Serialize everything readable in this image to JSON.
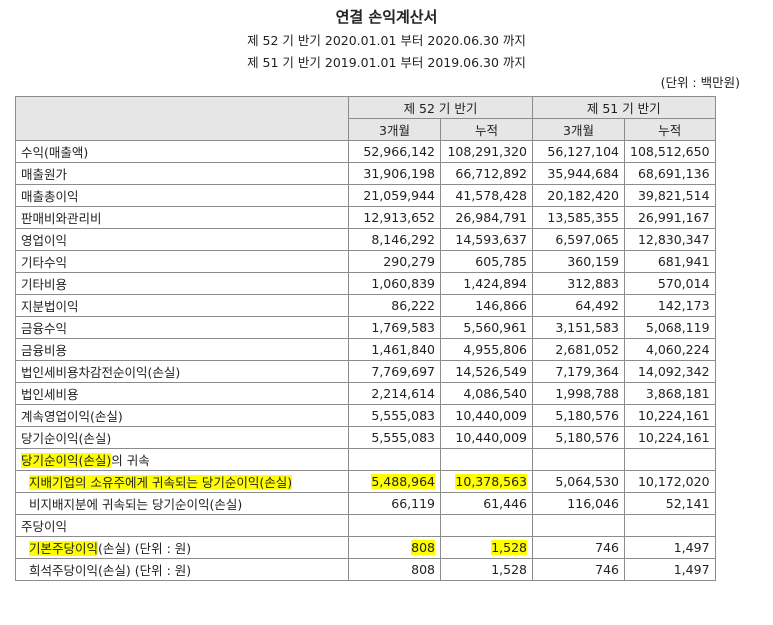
{
  "title": "연결 손익계산서",
  "period_current": "제 52 기 반기 2020.01.01 부터 2020.06.30 까지",
  "period_prior": "제 51 기 반기 2019.01.01 부터 2019.06.30 까지",
  "unit": "(단위 : 백만원)",
  "header": {
    "current_period": "제 52 기 반기",
    "prior_period": "제 51 기 반기",
    "three_months": "3개월",
    "cumulative": "누적"
  },
  "rows": [
    {
      "label": "수익(매출액)",
      "v": [
        "52,966,142",
        "108,291,320",
        "56,127,104",
        "108,512,650"
      ]
    },
    {
      "label": "매출원가",
      "v": [
        "31,906,198",
        "66,712,892",
        "35,944,684",
        "68,691,136"
      ]
    },
    {
      "label": "매출총이익",
      "v": [
        "21,059,944",
        "41,578,428",
        "20,182,420",
        "39,821,514"
      ]
    },
    {
      "label": "판매비와관리비",
      "v": [
        "12,913,652",
        "26,984,791",
        "13,585,355",
        "26,991,167"
      ]
    },
    {
      "label": "영업이익",
      "v": [
        "8,146,292",
        "14,593,637",
        "6,597,065",
        "12,830,347"
      ]
    },
    {
      "label": "기타수익",
      "v": [
        "290,279",
        "605,785",
        "360,159",
        "681,941"
      ]
    },
    {
      "label": "기타비용",
      "v": [
        "1,060,839",
        "1,424,894",
        "312,883",
        "570,014"
      ]
    },
    {
      "label": "지분법이익",
      "v": [
        "86,222",
        "146,866",
        "64,492",
        "142,173"
      ]
    },
    {
      "label": "금융수익",
      "v": [
        "1,769,583",
        "5,560,961",
        "3,151,583",
        "5,068,119"
      ]
    },
    {
      "label": "금융비용",
      "v": [
        "1,461,840",
        "4,955,806",
        "2,681,052",
        "4,060,224"
      ]
    },
    {
      "label": "법인세비용차감전순이익(손실)",
      "v": [
        "7,769,697",
        "14,526,549",
        "7,179,364",
        "14,092,342"
      ]
    },
    {
      "label": "법인세비용",
      "v": [
        "2,214,614",
        "4,086,540",
        "1,998,788",
        "3,868,181"
      ]
    },
    {
      "label": "계속영업이익(손실)",
      "v": [
        "5,555,083",
        "10,440,009",
        "5,180,576",
        "10,224,161"
      ]
    },
    {
      "label": "당기순이익(손실)",
      "v": [
        "5,555,083",
        "10,440,009",
        "5,180,576",
        "10,224,161"
      ]
    }
  ],
  "attribution": {
    "label_hl": "당기순이익(손실)",
    "label_rest": "의 귀속",
    "owners": {
      "label": "지배기업의 소유주에게 귀속되는 당기순이익(손실)",
      "v": [
        "5,488,964",
        "10,378,563",
        "5,064,530",
        "10,172,020"
      ]
    },
    "nci": {
      "label": "비지배지분에 귀속되는 당기순이익(손실)",
      "v": [
        "66,119",
        "61,446",
        "116,046",
        "52,141"
      ]
    }
  },
  "eps": {
    "label": "주당이익",
    "basic": {
      "label_hl": "기본주당이익",
      "label_rest": "(손실) (단위 : 원)",
      "v": [
        "808",
        "1,528",
        "746",
        "1,497"
      ]
    },
    "diluted": {
      "label": "희석주당이익(손실) (단위 : 원)",
      "v": [
        "808",
        "1,528",
        "746",
        "1,497"
      ]
    }
  },
  "highlight_color": "#ffff00"
}
